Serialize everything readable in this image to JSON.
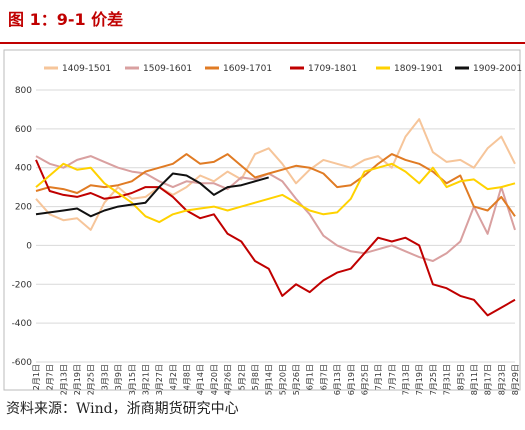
{
  "title": "图 1：9-1 价差",
  "source": "资料来源：Wind，浙商期货研究中心",
  "chart_data": {
    "type": "line",
    "ylim": [
      -600,
      800
    ],
    "yticks": [
      -600,
      -400,
      -200,
      0,
      200,
      400,
      600,
      800
    ],
    "grid": true,
    "legend_placement": "top",
    "categories": [
      "2月1日",
      "2月7日",
      "2月13日",
      "2月19日",
      "2月25日",
      "3月3日",
      "3月9日",
      "3月15日",
      "3月21日",
      "3月27日",
      "4月2日",
      "4月8日",
      "4月14日",
      "4月20日",
      "4月26日",
      "5月2日",
      "5月8日",
      "5月14日",
      "5月20日",
      "5月26日",
      "6月1日",
      "6月7日",
      "6月13日",
      "6月19日",
      "6月25日",
      "7月1日",
      "7月7日",
      "7月13日",
      "7月19日",
      "7月25日",
      "7月31日",
      "8月5日",
      "8月11日",
      "8月17日",
      "8月23日",
      "8月29日"
    ],
    "series": [
      {
        "name": "1409-1501",
        "color": "#f6c59a",
        "values": [
          240,
          160,
          130,
          140,
          80,
          220,
          300,
          240,
          250,
          300,
          260,
          300,
          360,
          330,
          380,
          340,
          470,
          500,
          420,
          320,
          390,
          440,
          420,
          400,
          440,
          460,
          400,
          560,
          650,
          480,
          430,
          440,
          400,
          500,
          560,
          420
        ]
      },
      {
        "name": "1509-1601",
        "color": "#d9a0a0",
        "values": [
          460,
          420,
          400,
          440,
          460,
          430,
          400,
          380,
          370,
          330,
          300,
          330,
          320,
          320,
          290,
          350,
          340,
          370,
          330,
          240,
          160,
          50,
          0,
          -30,
          -40,
          -20,
          0,
          -30,
          -60,
          -80,
          -40,
          20,
          200,
          60,
          300,
          80
        ]
      },
      {
        "name": "1609-1701",
        "color": "#e07b24",
        "values": [
          280,
          300,
          290,
          270,
          310,
          300,
          310,
          330,
          380,
          400,
          420,
          470,
          420,
          430,
          470,
          410,
          350,
          370,
          390,
          410,
          400,
          370,
          300,
          310,
          360,
          420,
          470,
          440,
          420,
          380,
          320,
          360,
          200,
          180,
          250,
          150
        ]
      },
      {
        "name": "1709-1801",
        "color": "#c00000",
        "values": [
          440,
          280,
          260,
          250,
          270,
          240,
          250,
          270,
          300,
          300,
          250,
          180,
          140,
          160,
          60,
          20,
          -80,
          -120,
          -260,
          -200,
          -240,
          -180,
          -140,
          -120,
          -40,
          40,
          20,
          40,
          0,
          -200,
          -220,
          -260,
          -280,
          -360,
          -320,
          -280
        ]
      },
      {
        "name": "1809-1901",
        "color": "#ffd200",
        "values": [
          300,
          360,
          420,
          390,
          400,
          320,
          270,
          220,
          150,
          120,
          160,
          180,
          190,
          200,
          180,
          200,
          220,
          240,
          260,
          220,
          180,
          160,
          170,
          240,
          380,
          400,
          420,
          380,
          320,
          400,
          300,
          330,
          340,
          290,
          300,
          320
        ]
      },
      {
        "name": "1909-2001",
        "color": "#111111",
        "values": [
          160,
          170,
          180,
          190,
          150,
          180,
          200,
          210,
          220,
          300,
          370,
          360,
          320,
          260,
          300,
          310,
          330,
          350,
          null,
          null,
          null,
          null,
          null,
          null,
          null,
          null,
          null,
          null,
          null,
          null,
          null,
          null,
          null,
          null,
          null,
          null
        ]
      }
    ]
  }
}
